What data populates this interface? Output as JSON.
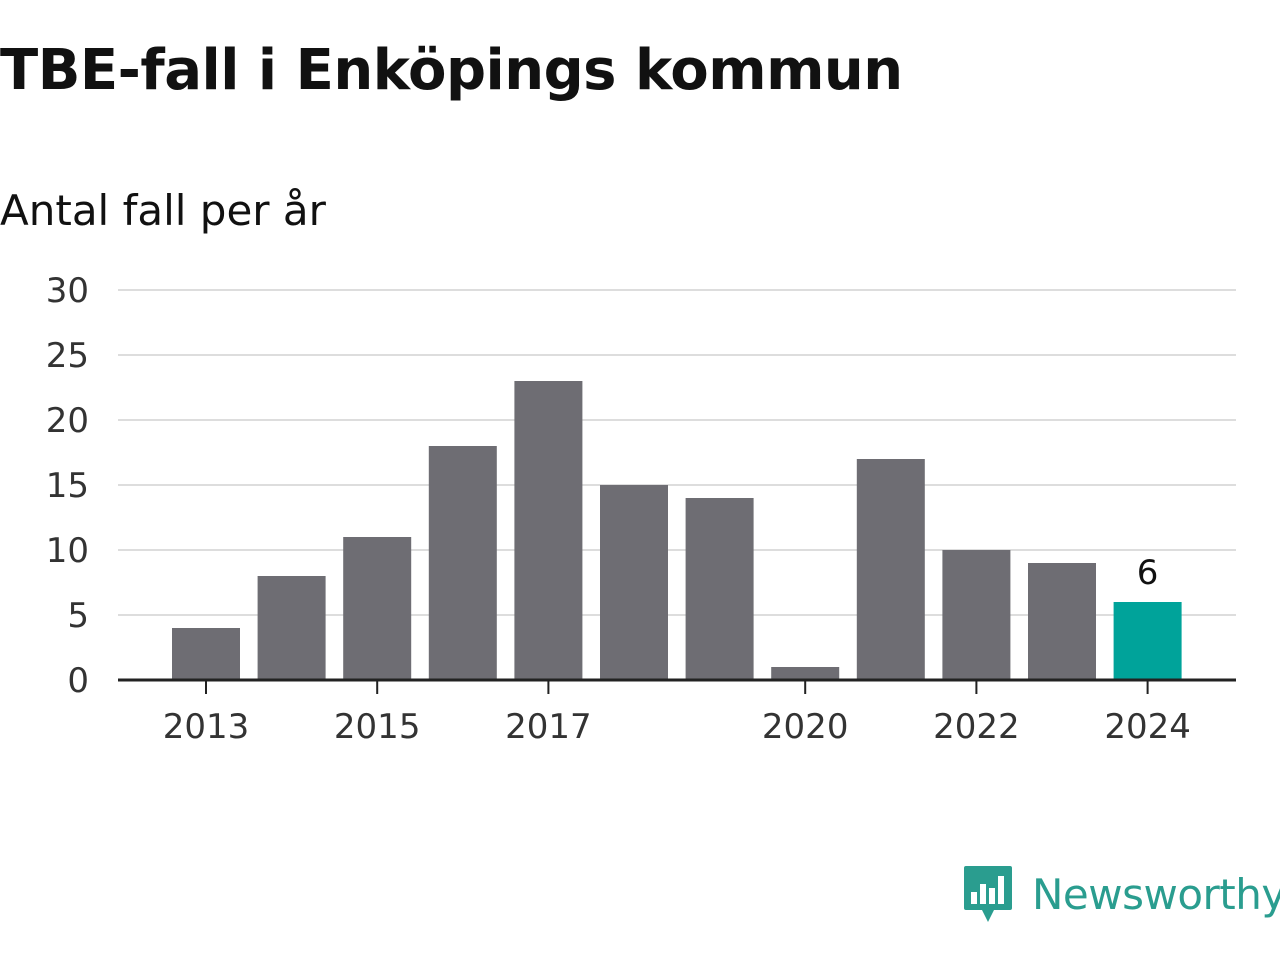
{
  "title": "TBE-fall i Enköpings kommun",
  "subtitle": "Antal fall per år",
  "brand": {
    "name": "Newsworthy",
    "icon": "bar-chart-speech-bubble-icon",
    "color": "#2a9d8f"
  },
  "colors": {
    "bar": "#6e6d73",
    "highlight": "#00a39a",
    "grid": "#dddddd",
    "axis": "#222222",
    "text": "#333333"
  },
  "chart_data": {
    "type": "bar",
    "categories": [
      "2013",
      "2014",
      "2015",
      "2016",
      "2017",
      "2018",
      "2019",
      "2020",
      "2021",
      "2022",
      "2023",
      "2024"
    ],
    "values": [
      4,
      8,
      11,
      18,
      23,
      15,
      14,
      1,
      17,
      10,
      9,
      6
    ],
    "tick_labels_x": [
      "2013",
      "2015",
      "2017",
      "2020",
      "2022",
      "2024"
    ],
    "y_ticks": [
      0,
      5,
      10,
      15,
      20,
      25,
      30
    ],
    "ylim": [
      0,
      30
    ],
    "highlight_index": 11,
    "data_labels": [
      {
        "category": "2024",
        "text": "6"
      }
    ],
    "grid": true,
    "legend": "none",
    "xlabel": "",
    "ylabel": ""
  }
}
